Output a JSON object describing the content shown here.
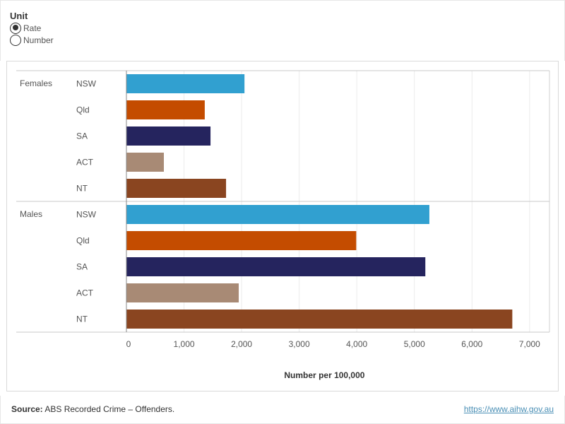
{
  "unit_selector": {
    "title": "Unit",
    "options": [
      {
        "label": "Rate",
        "checked": true
      },
      {
        "label": "Number",
        "checked": false
      }
    ]
  },
  "chart_data": {
    "type": "bar",
    "orientation": "horizontal",
    "xlabel": "Number per 100,000",
    "xlim": [
      0,
      7000
    ],
    "xticks": [
      0,
      1000,
      2000,
      3000,
      4000,
      5000,
      6000,
      7000
    ],
    "xtick_labels": [
      "0",
      "1,000",
      "2,000",
      "3,000",
      "4,000",
      "5,000",
      "6,000",
      "7,000"
    ],
    "grid": true,
    "groups": [
      {
        "label": "Females",
        "bars": [
          {
            "state": "NSW",
            "value": 2050,
            "color": "#31a0d0"
          },
          {
            "state": "Qld",
            "value": 1360,
            "color": "#c44c00"
          },
          {
            "state": "SA",
            "value": 1460,
            "color": "#25245e"
          },
          {
            "state": "ACT",
            "value": 650,
            "color": "#a88a75"
          },
          {
            "state": "NT",
            "value": 1730,
            "color": "#8a4520"
          }
        ]
      },
      {
        "label": "Males",
        "bars": [
          {
            "state": "NSW",
            "value": 5260,
            "color": "#31a0d0"
          },
          {
            "state": "Qld",
            "value": 3990,
            "color": "#c44c00"
          },
          {
            "state": "SA",
            "value": 5190,
            "color": "#25245e"
          },
          {
            "state": "ACT",
            "value": 1950,
            "color": "#a88a75"
          },
          {
            "state": "NT",
            "value": 6700,
            "color": "#8a4520"
          }
        ]
      }
    ]
  },
  "footer": {
    "source_label": "Source:",
    "source_text": " ABS Recorded Crime – Offenders.",
    "url": "https://www.aihw.gov.au"
  }
}
